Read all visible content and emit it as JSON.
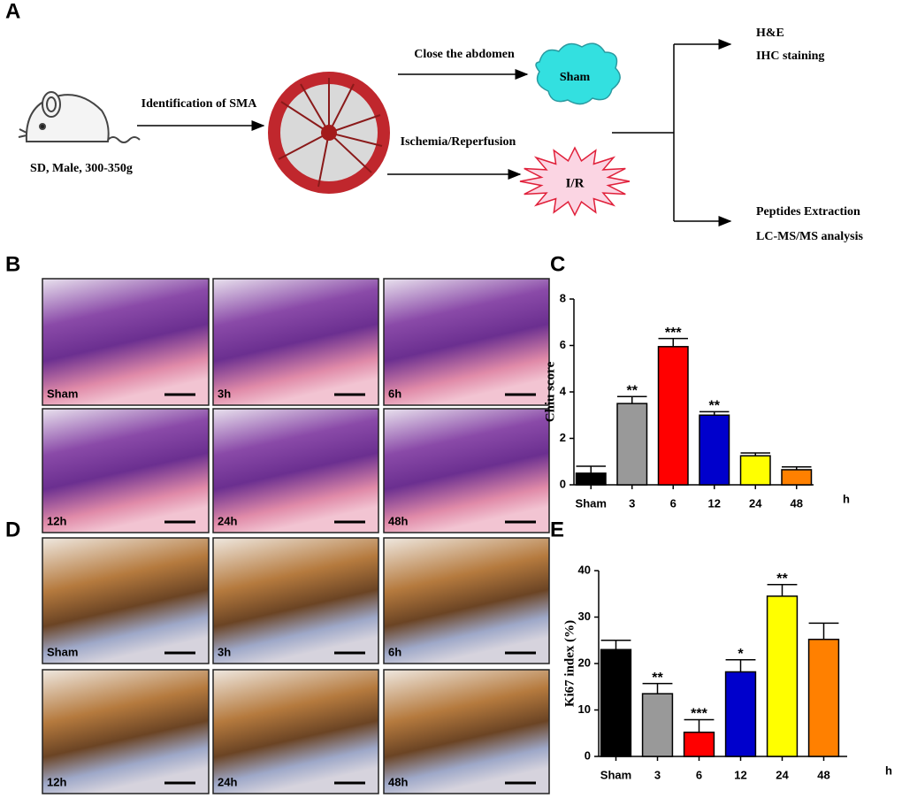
{
  "panel_labels": [
    "A",
    "B",
    "C",
    "D",
    "E"
  ],
  "schema": {
    "mouse_label": "SD, Male, 300-350g",
    "step1": "Identification of SMA",
    "branch_top": "Close the abdomen",
    "branch_bottom": "Ischemia/Reperfusion",
    "sham": "Sham",
    "ir": "I/R",
    "out_top": [
      "H&E",
      "IHC staining"
    ],
    "out_bottom": [
      "Peptides Extraction",
      "LC-MS/MS analysis"
    ]
  },
  "he_images": [
    "Sham",
    "3h",
    "6h",
    "12h",
    "24h",
    "48h"
  ],
  "ihc_images": [
    "Sham",
    "3h",
    "6h",
    "12h",
    "24h",
    "48h"
  ],
  "chart_data": [
    {
      "type": "bar",
      "y_label": "Chiu score",
      "x_unit": "h",
      "categories": [
        "Sham",
        "3",
        "6",
        "12",
        "24",
        "48"
      ],
      "values": [
        0.5,
        3.5,
        5.95,
        3.0,
        1.25,
        0.65
      ],
      "errors": [
        0.3,
        0.3,
        0.35,
        0.15,
        0.12,
        0.12
      ],
      "significance": [
        null,
        "**",
        "***",
        "**",
        null,
        null
      ],
      "colors": [
        "#000000",
        "#999999",
        "#ff0000",
        "#0000cc",
        "#ffff00",
        "#ff8000"
      ],
      "ylim": [
        0,
        8
      ],
      "yticks": [
        0,
        2,
        4,
        6,
        8
      ]
    },
    {
      "type": "bar",
      "y_label": "Ki67 index (%)",
      "x_unit": "h",
      "categories": [
        "Sham",
        "3",
        "6",
        "12",
        "24",
        "48"
      ],
      "values": [
        23,
        13.5,
        5.2,
        18.2,
        34.5,
        25.2
      ],
      "errors": [
        2,
        2.2,
        2.7,
        2.6,
        2.5,
        3.5
      ],
      "significance": [
        null,
        "**",
        "***",
        "*",
        "**",
        null
      ],
      "colors": [
        "#000000",
        "#999999",
        "#ff0000",
        "#0000cc",
        "#ffff00",
        "#ff8000"
      ],
      "ylim": [
        0,
        40
      ],
      "yticks": [
        0,
        10,
        20,
        30,
        40
      ]
    }
  ]
}
